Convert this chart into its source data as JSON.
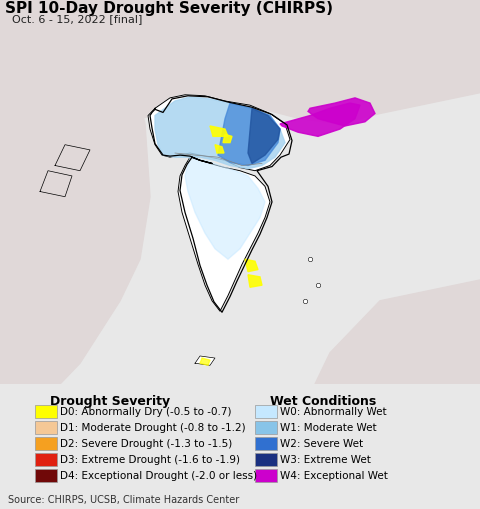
{
  "title": "SPI 10-Day Drought Severity (CHIRPS)",
  "subtitle": "Oct. 6 - 15, 2022 [final]",
  "source_text": "Source: CHIRPS, UCSB, Climate Hazards Center",
  "bg_color": "#e8e8e8",
  "map_ocean_color": "#b3ecf5",
  "map_land_color": "#e0d8d8",
  "legend_bg_color": "#f0f0f0",
  "drought_labels": [
    "D0: Abnormally Dry (-0.5 to -0.7)",
    "D1: Moderate Drought (-0.8 to -1.2)",
    "D2: Severe Drought (-1.3 to -1.5)",
    "D3: Extreme Drought (-1.6 to -1.9)",
    "D4: Exceptional Drought (-2.0 or less)"
  ],
  "drought_colors": [
    "#ffff00",
    "#f5c896",
    "#f5a020",
    "#e02010",
    "#700808"
  ],
  "wet_labels": [
    "W0: Abnormally Wet",
    "W1: Moderate Wet",
    "W2: Severe Wet",
    "W3: Extreme Wet",
    "W4: Exceptional Wet"
  ],
  "wet_colors": [
    "#c5e8ff",
    "#88c4e8",
    "#3070d0",
    "#1a3080",
    "#cc00cc"
  ],
  "title_fontsize": 11,
  "subtitle_fontsize": 8,
  "legend_title_fontsize": 9,
  "legend_item_fontsize": 7.5,
  "source_fontsize": 7
}
